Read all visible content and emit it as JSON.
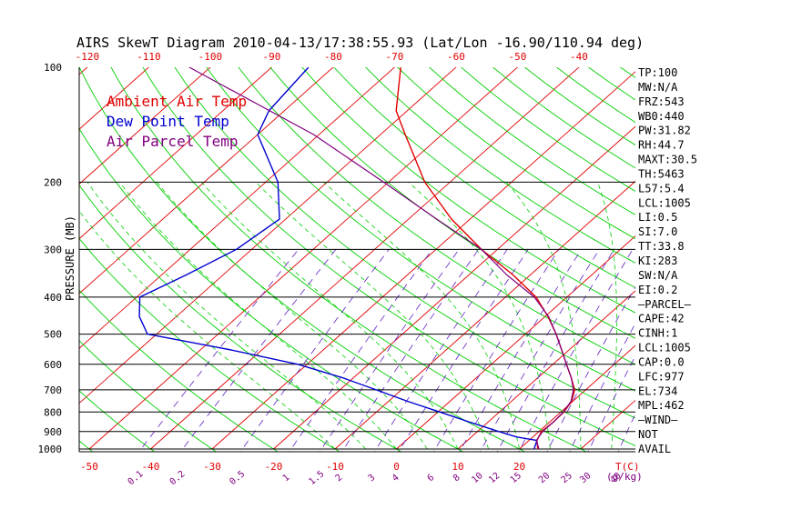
{
  "chart_data": {
    "type": "line",
    "title": "AIRS SkewT Diagram 2010-04-13/17:38:55.93 (Lat/Lon -16.90/110.94 deg)",
    "ylabel": "PRESSURE (MB)",
    "xlabel_bottom": "T(C)",
    "mixing_ratio_label": "(g/kg)",
    "pressure_ticks": [
      "100",
      "200",
      "300",
      "400",
      "500",
      "600",
      "700",
      "800",
      "900",
      "1000"
    ],
    "top_temp_ticks": [
      "-120",
      "-110",
      "-100",
      "-90",
      "-80",
      "-70",
      "-60",
      "-50",
      "-40"
    ],
    "bottom_temp_ticks": [
      "-50",
      "-40",
      "-30",
      "-20",
      "-10",
      "0",
      "10",
      "20"
    ],
    "mixing_ratio_ticks": [
      "0.1",
      "0.2",
      "0.5",
      "1",
      "1.5",
      "2",
      "3",
      "4",
      "6",
      "8",
      "10",
      "12",
      "15",
      "20",
      "25",
      "30",
      "40"
    ],
    "legend": [
      {
        "label": "Ambient Air Temp",
        "color": "#e00000"
      },
      {
        "label": "Dew Point Temp",
        "color": "#0000d0"
      },
      {
        "label": "Air Parcel Temp",
        "color": "#800080"
      }
    ],
    "series": [
      {
        "name": "Ambient Air Temp",
        "points": [
          [
            1000,
            23.0
          ],
          [
            950,
            21.3
          ],
          [
            900,
            20.4
          ],
          [
            850,
            20.6
          ],
          [
            800,
            20.5
          ],
          [
            750,
            19.8
          ],
          [
            700,
            18.2
          ],
          [
            650,
            15.4
          ],
          [
            600,
            12.2
          ],
          [
            550,
            8.8
          ],
          [
            500,
            5.0
          ],
          [
            450,
            0.5
          ],
          [
            400,
            -5.0
          ],
          [
            350,
            -12.8
          ],
          [
            300,
            -22.6
          ],
          [
            250,
            -33.0
          ],
          [
            200,
            -44.1
          ],
          [
            150,
            -56.0
          ],
          [
            130,
            -61.8
          ],
          [
            100,
            -69.0
          ]
        ]
      },
      {
        "name": "Dew Point Temp",
        "points": [
          [
            1000,
            22.4
          ],
          [
            950,
            21.3
          ],
          [
            930,
            17.4
          ],
          [
            900,
            13.5
          ],
          [
            850,
            7.0
          ],
          [
            800,
            0.3
          ],
          [
            750,
            -6.9
          ],
          [
            700,
            -14.1
          ],
          [
            650,
            -21.9
          ],
          [
            600,
            -31.5
          ],
          [
            550,
            -45.0
          ],
          [
            500,
            -61.5
          ],
          [
            450,
            -66.0
          ],
          [
            400,
            -69.5
          ],
          [
            350,
            -66.0
          ],
          [
            300,
            -62.5
          ],
          [
            250,
            -61.0
          ],
          [
            200,
            -68.0
          ],
          [
            150,
            -80.0
          ],
          [
            130,
            -82.5
          ],
          [
            100,
            -84.0
          ]
        ]
      },
      {
        "name": "Air Parcel Temp",
        "points": [
          [
            1000,
            23.2
          ],
          [
            950,
            21.2
          ],
          [
            900,
            20.6
          ],
          [
            850,
            20.6
          ],
          [
            800,
            20.4
          ],
          [
            750,
            19.7
          ],
          [
            700,
            18.0
          ],
          [
            650,
            15.4
          ],
          [
            600,
            12.2
          ],
          [
            550,
            8.8
          ],
          [
            500,
            5.0
          ],
          [
            450,
            0.6
          ],
          [
            400,
            -5.3
          ],
          [
            350,
            -13.8
          ],
          [
            300,
            -22.6
          ],
          [
            250,
            -35.4
          ],
          [
            200,
            -50.8
          ],
          [
            150,
            -70.9
          ],
          [
            100,
            -103.4
          ]
        ]
      }
    ],
    "isotherms_c": [
      -160,
      -150,
      -140,
      -130,
      -120,
      -110,
      -100,
      -90,
      -80,
      -70,
      -60,
      -50,
      -40,
      -30,
      -20,
      -10,
      0,
      10,
      20,
      30,
      40
    ],
    "mixing_ratios_g_kg": [
      0.1,
      0.2,
      0.5,
      1,
      1.5,
      2,
      3,
      4,
      6,
      8,
      10,
      12,
      15,
      20,
      25,
      30,
      40
    ],
    "indices": [
      "TP:100",
      "MW:N/A",
      "FRZ:543",
      "WB0:440",
      "PW:31.82",
      "RH:44.7",
      "MAXT:30.5",
      "TH:5463",
      "L57:5.4",
      "LCL:1005",
      "LI:0.5",
      "SI:7.0",
      "TT:33.8",
      "KI:283",
      "SW:N/A",
      "EI:0.2",
      "—PARCEL—",
      "CAPE:42",
      "CINH:1",
      "LCL:1005",
      "CAP:0.0",
      "LFC:977",
      "EL:734",
      "MPL:462",
      "—WIND—",
      "NOT",
      "AVAIL"
    ],
    "colors": {
      "isotherm": "#e00000",
      "dry_adiabat": "#00d000",
      "moist_adiabat": "#00d000",
      "mixing_ratio": "#6020c0",
      "isobar": "#000000",
      "tick_labels": "#e00000",
      "mixing_ratio_labels": "#800080"
    }
  }
}
